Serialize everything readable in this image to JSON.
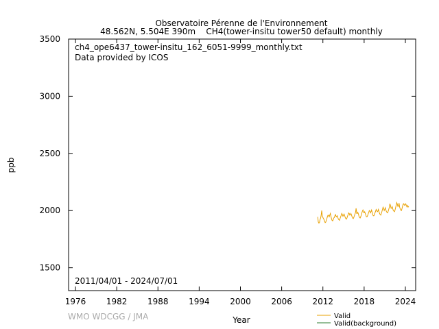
{
  "chart_data": {
    "type": "line",
    "title": "Observatoire Pérenne de l'Environnement",
    "subtitle": "48.562N, 5.504E 390m    CH4(tower-insitu tower50 default) monthly",
    "annotations": [
      "ch4_ope6437_tower-insitu_162_6051-9999_monthly.txt",
      "Data provided by ICOS",
      "2011/04/01 - 2024/07/01"
    ],
    "credit": "WMO WDCGG / JMA",
    "xlabel": "Year",
    "ylabel": "ppb",
    "xlim": [
      1975,
      2025.5
    ],
    "ylim": [
      1300,
      3500
    ],
    "xticks": [
      1976,
      1982,
      1988,
      1994,
      2000,
      2006,
      2012,
      2018,
      2024
    ],
    "yticks": [
      1500,
      2000,
      2500,
      3000,
      3500
    ],
    "legend": [
      {
        "name": "Valid",
        "color": "#e8a000"
      },
      {
        "name": "Valid(background)",
        "color": "#2e7d32"
      }
    ],
    "x": [
      2011.25,
      2011.33,
      2011.42,
      2011.5,
      2011.58,
      2011.67,
      2011.75,
      2011.83,
      2011.92,
      2012,
      2012.08,
      2012.17,
      2012.25,
      2012.33,
      2012.42,
      2012.5,
      2012.58,
      2012.67,
      2012.75,
      2012.83,
      2012.92,
      2013,
      2013.08,
      2013.17,
      2013.25,
      2013.33,
      2013.42,
      2013.5,
      2013.58,
      2013.67,
      2013.75,
      2013.83,
      2013.92,
      2014,
      2014.08,
      2014.17,
      2014.25,
      2014.33,
      2014.42,
      2014.5,
      2014.58,
      2014.67,
      2014.75,
      2014.83,
      2014.92,
      2015,
      2015.08,
      2015.17,
      2015.25,
      2015.33,
      2015.42,
      2015.5,
      2015.58,
      2015.67,
      2015.75,
      2015.83,
      2015.92,
      2016,
      2016.08,
      2016.17,
      2016.25,
      2016.33,
      2016.42,
      2016.5,
      2016.58,
      2016.67,
      2016.75,
      2016.83,
      2016.92,
      2017,
      2017.08,
      2017.17,
      2017.25,
      2017.33,
      2017.42,
      2017.5,
      2017.58,
      2017.67,
      2017.75,
      2017.83,
      2017.92,
      2018,
      2018.08,
      2018.17,
      2018.25,
      2018.33,
      2018.42,
      2018.5,
      2018.58,
      2018.67,
      2018.75,
      2018.83,
      2018.92,
      2019,
      2019.08,
      2019.17,
      2019.25,
      2019.33,
      2019.42,
      2019.5,
      2019.58,
      2019.67,
      2019.75,
      2019.83,
      2019.92,
      2020,
      2020.08,
      2020.17,
      2020.25,
      2020.33,
      2020.42,
      2020.5,
      2020.58,
      2020.67,
      2020.75,
      2020.83,
      2020.92,
      2021,
      2021.08,
      2021.17,
      2021.25,
      2021.33,
      2021.42,
      2021.5,
      2021.58,
      2021.67,
      2021.75,
      2021.83,
      2021.92,
      2022,
      2022.08,
      2022.17,
      2022.25,
      2022.33,
      2022.42,
      2022.5,
      2022.58,
      2022.67,
      2022.75,
      2022.83,
      2022.92,
      2023,
      2023.08,
      2023.17,
      2023.25,
      2023.33,
      2023.42,
      2023.5,
      2023.58,
      2023.67,
      2023.75,
      2023.83,
      2023.92,
      2024,
      2024.08,
      2024.17,
      2024.25,
      2024.33,
      2024.42,
      2024.5
    ],
    "series": [
      {
        "name": "Valid",
        "color": "#e8a000",
        "values": [
          1945,
          1900,
          1890,
          1895,
          1920,
          1935,
          1960,
          2000,
          1950,
          1940,
          1930,
          1920,
          1905,
          1895,
          1900,
          1915,
          1930,
          1950,
          1960,
          1955,
          1945,
          1960,
          1975,
          1950,
          1930,
          1915,
          1910,
          1920,
          1935,
          1940,
          1955,
          1965,
          1950,
          1945,
          1955,
          1940,
          1925,
          1920,
          1915,
          1930,
          1945,
          1960,
          1975,
          1965,
          1950,
          1960,
          1970,
          1955,
          1940,
          1930,
          1925,
          1935,
          1950,
          1965,
          1980,
          1975,
          1960,
          1965,
          1975,
          1960,
          1945,
          1935,
          1930,
          1940,
          1955,
          1970,
          1985,
          2020,
          1975,
          1975,
          1985,
          1970,
          1950,
          1940,
          1935,
          1945,
          1960,
          1980,
          1995,
          2005,
          1985,
          1980,
          1990,
          1975,
          1960,
          1945,
          1945,
          1955,
          1970,
          1985,
          2000,
          1995,
          1980,
          1990,
          2005,
          1985,
          1965,
          1955,
          1955,
          1965,
          1980,
          1995,
          2010,
          2000,
          1990,
          1995,
          2010,
          1990,
          1975,
          1965,
          1960,
          1975,
          1990,
          2010,
          2030,
          2020,
          2000,
          2010,
          2025,
          2005,
          1990,
          1985,
          1980,
          1995,
          2010,
          2030,
          2060,
          2045,
          2020,
          2020,
          2035,
          2015,
          2000,
          1995,
          1990,
          2005,
          2025,
          2050,
          2070,
          2055,
          2035,
          2040,
          2065,
          2030,
          2015,
          2005,
          2000,
          2015,
          2035,
          2055,
          2060,
          2050,
          2045,
          2060,
          2055,
          2040,
          2030,
          2045,
          2035,
          2030
        ]
      }
    ]
  }
}
